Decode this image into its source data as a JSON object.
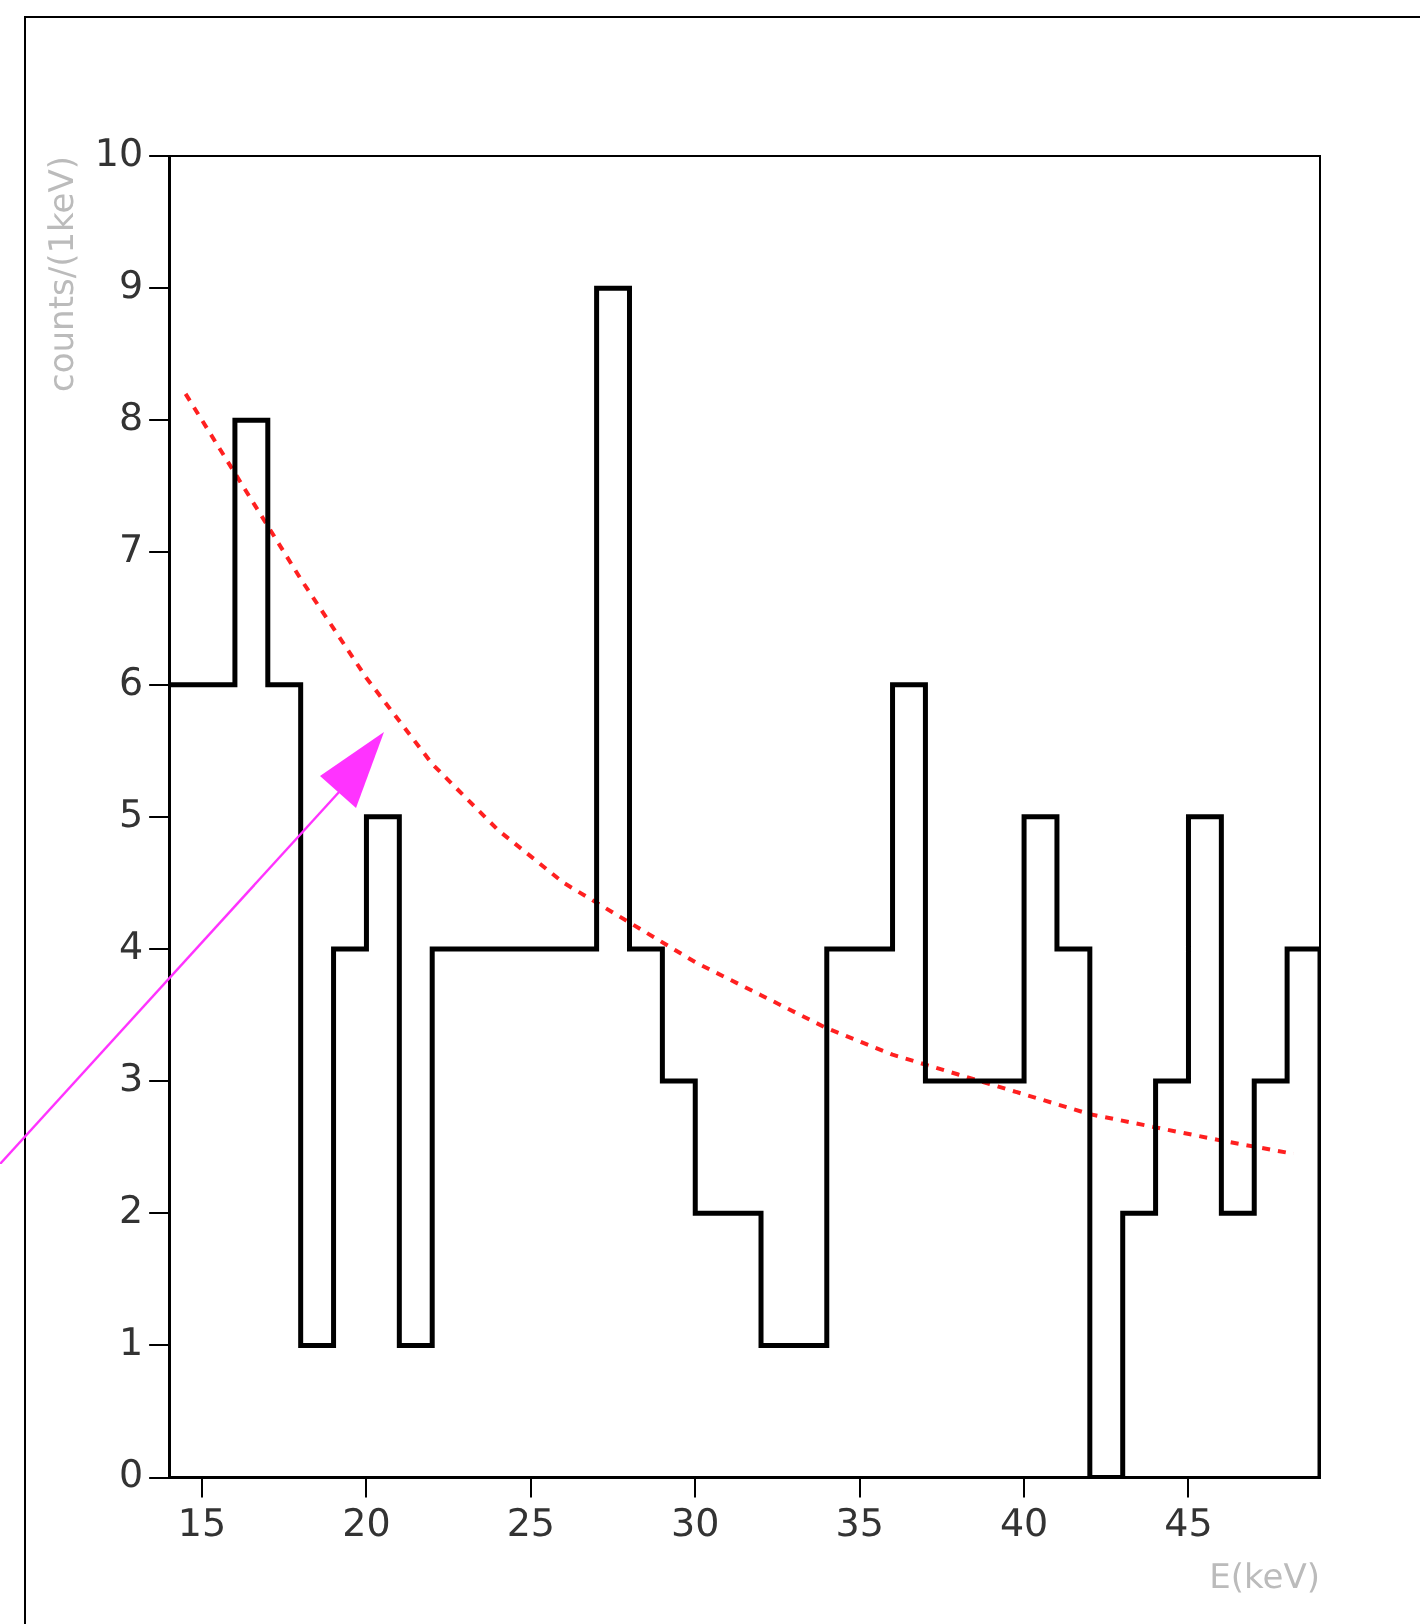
{
  "chart_data": {
    "type": "histogram",
    "xlabel": "E(keV)",
    "ylabel": "counts/(1keV)",
    "xlim": [
      14,
      49
    ],
    "xticks": [
      15,
      20,
      25,
      30,
      35,
      40,
      45
    ],
    "ylim": [
      0,
      10
    ],
    "yticks": [
      0,
      1,
      2,
      3,
      4,
      5,
      6,
      7,
      8,
      9,
      10
    ],
    "grid": false,
    "legend": false,
    "series": [
      {
        "color": "#000000",
        "bins": [
          14,
          15,
          16,
          17,
          18,
          19,
          20,
          21,
          22,
          23,
          24,
          25,
          26,
          27,
          28,
          29,
          30,
          31,
          32,
          33,
          34,
          35,
          36,
          37,
          38,
          39,
          40,
          41,
          42,
          43,
          44,
          45,
          46,
          47,
          48,
          49
        ],
        "values": [
          6,
          6,
          8,
          6,
          1,
          4,
          5,
          1,
          4,
          4,
          4,
          4,
          4,
          9,
          4,
          3,
          2,
          2,
          1,
          1,
          4,
          4,
          6,
          3,
          3,
          3,
          5,
          4,
          0,
          2,
          3,
          5,
          2,
          3,
          4
        ]
      },
      {
        "type": "line",
        "color": "#ff2020",
        "line_style": "dashed",
        "marker": "none",
        "x": [
          14.5,
          16,
          18,
          20,
          22,
          24,
          26,
          28,
          30,
          32,
          34,
          36,
          38,
          40,
          42,
          44,
          46,
          48.2
        ],
        "values": [
          8.2,
          7.6,
          6.8,
          6.05,
          5.4,
          4.9,
          4.5,
          4.2,
          3.9,
          3.65,
          3.4,
          3.2,
          3.05,
          2.9,
          2.75,
          2.65,
          2.55,
          2.45
        ]
      }
    ]
  }
}
